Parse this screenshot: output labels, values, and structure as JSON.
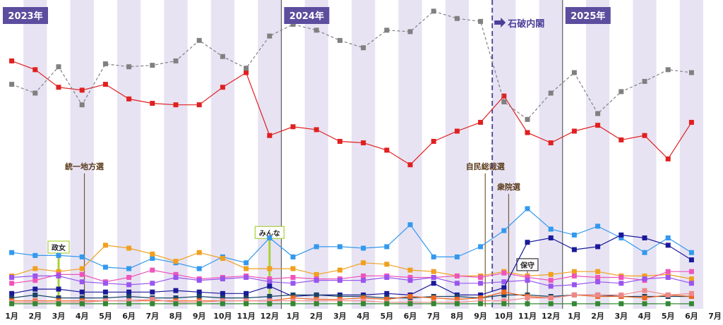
{
  "colors": {
    "band": "#e7e3f3",
    "year_badge": "#5c4d9e",
    "event_line": "#4b3f9a",
    "annot_line": "#7a5a3a",
    "green_tick": "#a8d13a"
  },
  "chart_data": {
    "type": "line",
    "title": "",
    "xlabel": "",
    "ylabel": "",
    "grid": "alternating vertical month bands",
    "legend": "none",
    "years": [
      {
        "label": "2023年",
        "start_index": 0
      },
      {
        "label": "2024年",
        "start_index": 12
      },
      {
        "label": "2025年",
        "start_index": 24
      }
    ],
    "categories": [
      "1月",
      "2月",
      "3月",
      "4月",
      "5月",
      "6月",
      "7月",
      "8月",
      "9月",
      "10月",
      "11月",
      "12月",
      "1月",
      "2月",
      "3月",
      "4月",
      "5月",
      "6月",
      "7月",
      "8月",
      "9月",
      "10月",
      "11月",
      "12月",
      "1月",
      "2月",
      "3月",
      "4月",
      "5月",
      "6月",
      "7月"
    ],
    "ylim": [
      0,
      100
    ],
    "event": {
      "label": "石破内閣",
      "x_index": 20.5
    },
    "annotations": [
      {
        "label": "統一地方選",
        "x_index": 3.1,
        "y_top": 47,
        "style": "text"
      },
      {
        "label": "自民総裁選",
        "x_index": 20.2,
        "y_top": 47,
        "style": "text"
      },
      {
        "label": "衆院選",
        "x_index": 21.2,
        "y_top": 40,
        "style": "text"
      },
      {
        "label": "政女",
        "x_index": 2.0,
        "y_top": 20,
        "style": "box",
        "line": "green"
      },
      {
        "label": "みんな",
        "x_index": 11.0,
        "y_top": 25,
        "style": "box",
        "line": "green"
      },
      {
        "label": "保守",
        "x_index": 22.0,
        "y_top": 14,
        "style": "box",
        "line": "dark"
      }
    ],
    "series": [
      {
        "color": "#e02020",
        "dash": "none",
        "values": [
          84,
          81,
          75,
          74,
          76,
          71,
          69.5,
          69,
          69,
          75,
          80,
          58.5,
          61.5,
          60.5,
          56.5,
          56,
          53.5,
          48.5,
          56.5,
          60,
          63,
          72,
          59.5,
          56,
          60,
          62,
          57,
          58.5,
          50.5,
          63,
          null
        ]
      },
      {
        "color": "#808080",
        "dash": "4,3",
        "values": [
          76,
          73,
          82,
          69,
          83,
          82,
          82.5,
          84,
          91,
          85.5,
          81.5,
          92.5,
          96.5,
          94.5,
          91,
          88.5,
          94.5,
          94,
          101,
          98.5,
          97.5,
          70,
          64,
          73,
          80,
          66,
          73.5,
          77,
          81,
          80,
          null
        ]
      },
      {
        "color": "#3399ee",
        "dash": "none",
        "values": [
          18.5,
          17.5,
          17.5,
          17,
          13.5,
          13,
          16.5,
          15,
          13,
          17,
          15,
          23.5,
          17,
          20.5,
          20.5,
          20,
          20.5,
          28,
          17,
          17,
          20.5,
          26,
          33.5,
          26.5,
          24.5,
          27.5,
          23.5,
          18.5,
          23.5,
          18.5,
          null
        ]
      },
      {
        "color": "#f0a020",
        "dash": "none",
        "values": [
          10.5,
          13,
          12,
          13,
          21,
          20,
          18,
          15.5,
          18.5,
          16.5,
          13,
          13,
          13,
          11,
          12.5,
          15,
          14.5,
          12.5,
          12,
          10.5,
          10.5,
          12,
          10.5,
          11,
          12,
          12,
          10.5,
          10.5,
          11,
          9.5,
          null
        ]
      },
      {
        "color": "#ee55bb",
        "dash": "none",
        "values": [
          8,
          9,
          11,
          11,
          8.5,
          10,
          12.5,
          11,
          9.5,
          10,
          10.5,
          9.5,
          10,
          9.5,
          9.5,
          10.5,
          10.5,
          10,
          10,
          10.5,
          10,
          11.5,
          10,
          9,
          10.5,
          10,
          10,
          9,
          12,
          12,
          null
        ]
      },
      {
        "color": "#9955ee",
        "dash": "none",
        "values": [
          10,
          10.5,
          10.5,
          8.5,
          8,
          7.5,
          8,
          10,
          9,
          9.5,
          10,
          8.5,
          8,
          9,
          9,
          9,
          10,
          9,
          10,
          8,
          8,
          8.5,
          9,
          7,
          7.5,
          8.5,
          8,
          9.5,
          10,
          8,
          null
        ]
      },
      {
        "color": "#1a1a99",
        "dash": "none",
        "values": [
          4.5,
          6,
          6,
          5,
          5,
          5,
          5,
          5.5,
          5,
          4.5,
          4.5,
          7,
          3.5,
          4,
          4,
          4,
          4.5,
          4,
          8,
          4,
          4,
          6.5,
          22,
          23.5,
          19.5,
          20.5,
          24.5,
          23.5,
          21,
          16,
          null
        ]
      },
      {
        "color": "#1a4466",
        "dash": "none",
        "values": [
          3,
          4,
          3,
          3,
          3,
          3.5,
          3,
          3,
          3.5,
          3,
          3,
          3.5,
          4,
          4,
          3.5,
          3.5,
          3,
          3,
          3.5,
          3.5,
          3,
          4,
          4,
          3.5,
          4,
          4,
          3.5,
          3.5,
          3.5,
          3.5,
          null
        ]
      },
      {
        "color": "#ee6620",
        "dash": "none",
        "values": [
          2,
          2,
          2,
          2,
          2,
          2,
          2,
          2,
          2,
          2,
          2,
          2,
          3,
          2.5,
          2.5,
          3,
          2.5,
          3.5,
          3,
          2.5,
          3,
          5,
          3.5,
          3,
          4,
          3.5,
          3.5,
          3,
          4,
          3.5,
          null
        ]
      },
      {
        "color": "#ee8888",
        "dash": "none",
        "values": [
          1.5,
          1.5,
          1.5,
          1.5,
          2,
          2,
          2.5,
          1.5,
          1.5,
          2,
          2,
          2,
          2,
          2,
          2,
          2,
          1.5,
          1.5,
          1.5,
          1.5,
          2,
          2,
          3,
          3,
          4,
          4,
          4,
          5.5,
          4,
          4.5,
          null
        ]
      },
      {
        "color": "#338833",
        "dash": "none",
        "values": [
          1,
          1,
          1,
          1,
          1,
          1,
          1,
          1,
          1,
          1,
          1,
          1,
          1,
          1,
          1,
          1,
          1,
          1,
          1,
          1,
          1,
          1,
          1,
          1,
          1,
          1,
          1,
          1,
          1,
          1,
          null
        ]
      }
    ]
  }
}
